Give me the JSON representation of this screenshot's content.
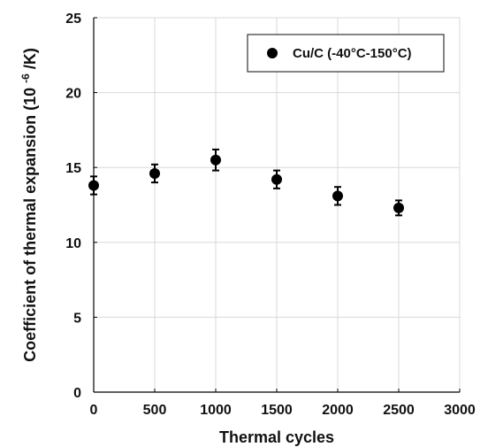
{
  "chart_data": {
    "type": "scatter",
    "xlabel": "Thermal cycles",
    "ylabel_prefix": "Coefficient of thermal expansion (10",
    "ylabel_exp": "-6",
    "ylabel_suffix": "/K)",
    "xlim": [
      0,
      3000
    ],
    "ylim": [
      0,
      25
    ],
    "xticks": [
      0,
      500,
      1000,
      1500,
      2000,
      2500,
      3000
    ],
    "yticks": [
      0,
      5,
      10,
      15,
      20,
      25
    ],
    "grid": true,
    "legend_position": "top-right",
    "series": [
      {
        "name": "Cu/C (-40°C-150°C)",
        "color": "#000000",
        "x": [
          0,
          500,
          1000,
          1500,
          2000,
          2500
        ],
        "y": [
          13.8,
          14.6,
          15.5,
          14.2,
          13.1,
          12.3
        ],
        "error": [
          0.6,
          0.6,
          0.7,
          0.6,
          0.6,
          0.5
        ]
      }
    ]
  }
}
